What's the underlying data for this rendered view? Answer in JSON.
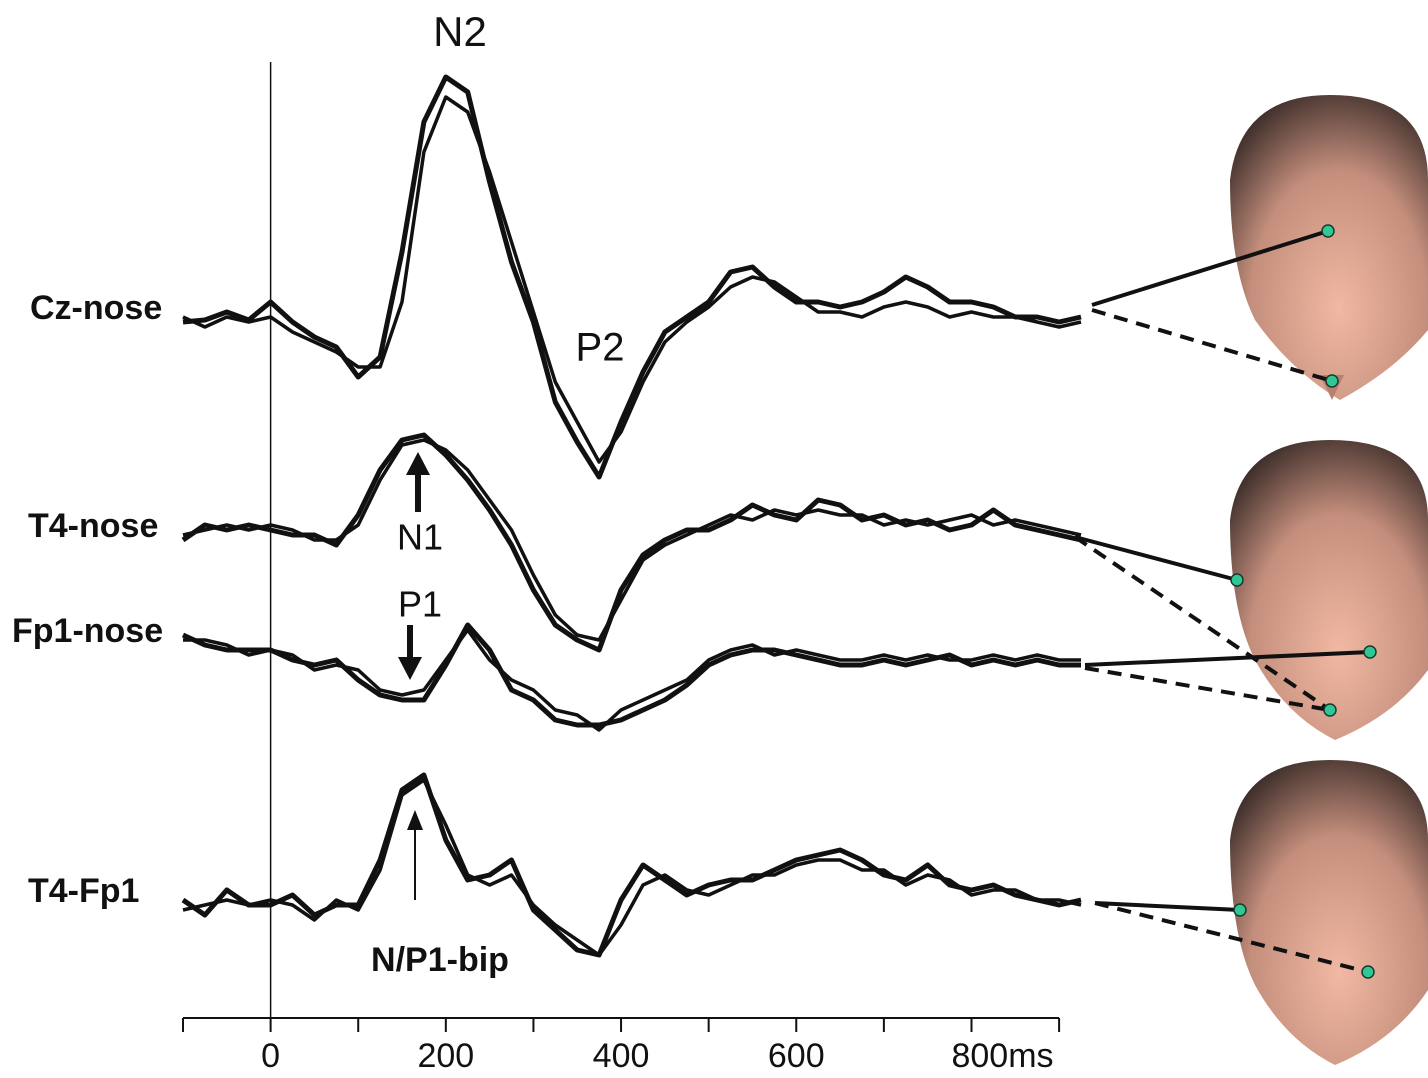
{
  "chart_data": {
    "type": "line",
    "x": [
      -100,
      -75,
      -50,
      -25,
      0,
      25,
      50,
      75,
      100,
      125,
      150,
      175,
      200,
      225,
      250,
      275,
      300,
      325,
      350,
      375,
      400,
      425,
      450,
      475,
      500,
      525,
      550,
      575,
      600,
      625,
      650,
      675,
      700,
      725,
      750,
      775,
      800,
      825,
      850,
      875,
      900,
      925
    ],
    "xlim": [
      -100,
      925
    ],
    "xticks": [
      0,
      200,
      400,
      600,
      {
        "value": 800,
        "label": "800ms"
      }
    ],
    "xminor_ticks": [
      -100,
      100,
      300,
      500,
      700,
      900
    ],
    "channels": [
      {
        "name": "Cz-nose",
        "traces": [
          [
            0,
            0.2,
            1,
            0.2,
            2,
            0,
            -1.5,
            -2.5,
            -5.5,
            -3.5,
            7,
            20,
            24.5,
            23,
            14,
            6,
            0,
            -8,
            -12,
            -15.5,
            -10,
            -5,
            -1,
            0.5,
            2,
            5,
            5.5,
            3.5,
            2,
            2,
            1.5,
            2,
            3,
            4.5,
            3.5,
            2,
            2,
            1.5,
            0.5,
            0.5,
            0,
            0.5
          ],
          [
            0.5,
            -0.5,
            0.5,
            0,
            0.5,
            -1,
            -2,
            -3,
            -4.5,
            -4.5,
            2,
            17,
            22.5,
            21,
            15,
            8,
            1,
            -6,
            -10,
            -14,
            -11,
            -6,
            -2,
            0,
            1.5,
            3.5,
            4.5,
            4,
            2.5,
            1,
            1,
            0.5,
            1.5,
            2,
            1.5,
            0.5,
            1,
            0.5,
            0.5,
            0,
            -0.5,
            0
          ]
        ]
      },
      {
        "name": "T4-nose",
        "traces": [
          [
            -1,
            0.5,
            0,
            0.5,
            0,
            -0.5,
            -0.5,
            -1.5,
            1.5,
            6,
            9,
            9.5,
            7.5,
            5,
            2,
            -1.5,
            -6,
            -9.5,
            -11,
            -12,
            -6,
            -2.5,
            -1,
            0,
            0,
            1,
            2.5,
            1.5,
            1,
            3,
            2.5,
            1,
            1.5,
            0.5,
            1,
            0,
            0.5,
            2,
            0.5,
            0,
            -0.5,
            -1
          ],
          [
            -0.5,
            0,
            0.5,
            0,
            0.5,
            0,
            -1,
            -1,
            0.5,
            5,
            8.5,
            9,
            8,
            6,
            3,
            0,
            -4.5,
            -8.5,
            -10.5,
            -11,
            -7,
            -3,
            -1.5,
            -0.5,
            0.5,
            1.5,
            1,
            2,
            1.5,
            2,
            1.5,
            1.5,
            0.5,
            1,
            0.5,
            1,
            1.5,
            0.5,
            1,
            0.5,
            0,
            -0.5
          ]
        ]
      },
      {
        "name": "Fp1-nose",
        "traces": [
          [
            0.5,
            -0.5,
            -1,
            -1,
            -1,
            -2,
            -2.5,
            -2,
            -4,
            -5.5,
            -6,
            -6,
            -2.5,
            1.5,
            -1,
            -5,
            -6,
            -8,
            -8.5,
            -8.5,
            -8,
            -7,
            -6,
            -4.5,
            -2.5,
            -1.5,
            -1,
            -1,
            -1.5,
            -2,
            -2.5,
            -2.5,
            -2,
            -2.5,
            -2,
            -1.5,
            -2.5,
            -2,
            -2.5,
            -2,
            -2.5,
            -2.5
          ],
          [
            0,
            0,
            -0.5,
            -1.5,
            -1,
            -1.5,
            -3,
            -2.5,
            -3,
            -5,
            -5.5,
            -5,
            -2,
            1,
            -2,
            -4,
            -5,
            -7,
            -7.5,
            -9,
            -7,
            -6,
            -5,
            -4,
            -2,
            -1,
            -0.5,
            -1.5,
            -1,
            -1.5,
            -2,
            -2,
            -1.5,
            -2,
            -1.5,
            -2,
            -2,
            -1.5,
            -2,
            -1.5,
            -2,
            -2
          ]
        ]
      },
      {
        "name": "T4-Fp1",
        "traces": [
          [
            0.5,
            -1,
            1.5,
            0,
            0,
            1,
            -1,
            0,
            0,
            4.5,
            11.5,
            13,
            6.5,
            2.5,
            3,
            4.5,
            -0.5,
            -2.5,
            -4.5,
            -5,
            0.5,
            4,
            2.5,
            1,
            2,
            2.5,
            2.5,
            3.5,
            4.5,
            5,
            5.5,
            4.5,
            3,
            2.5,
            4,
            2,
            1.5,
            2,
            1,
            0.5,
            0,
            0.5
          ],
          [
            -0.5,
            0,
            0.5,
            0,
            0.5,
            0,
            -1.5,
            0.5,
            -0.5,
            3.5,
            11,
            12.5,
            8,
            3,
            2,
            3,
            0,
            -2,
            -3.5,
            -5,
            -2,
            2,
            3,
            1.5,
            1,
            2,
            3,
            3,
            4,
            4.5,
            4.5,
            3.5,
            3.5,
            2,
            3,
            2.5,
            1,
            1.5,
            1.5,
            0.5,
            0.5,
            0
          ]
        ]
      }
    ],
    "annotations": [
      "N2",
      "P2",
      "N1",
      "P1",
      "N/P1-bip"
    ]
  }
}
